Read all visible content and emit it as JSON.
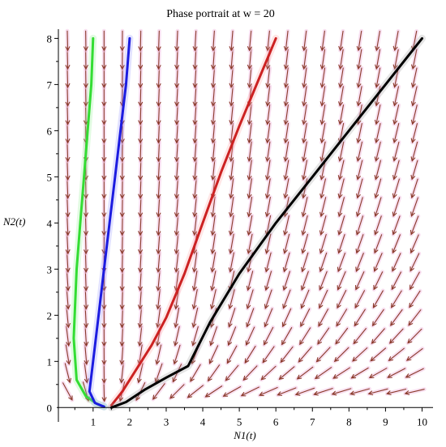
{
  "chart_data": {
    "type": "line",
    "title": "Phase portrait at w = 20",
    "xlabel": "N1(t)",
    "ylabel": "N2(t)",
    "xlim": [
      0.05,
      10.3
    ],
    "ylim": [
      -0.1,
      8.2
    ],
    "xticks": [
      1,
      2,
      3,
      4,
      5,
      6,
      7,
      8,
      9,
      10
    ],
    "yticks": [
      0,
      1,
      2,
      3,
      4,
      5,
      6,
      7,
      8
    ],
    "equilibrium": [
      1.35,
      0
    ],
    "vector_field": {
      "x": [
        0.3,
        0.8,
        1.3,
        1.8,
        2.3,
        2.8,
        3.3,
        3.8,
        4.3,
        4.8,
        5.3,
        5.8,
        6.3,
        6.8,
        7.3,
        7.8,
        8.3,
        8.8,
        9.3,
        9.8
      ],
      "y": [
        0.35,
        0.75,
        1.15,
        1.55,
        1.95,
        2.35,
        2.75,
        3.15,
        3.55,
        3.95,
        4.35,
        4.75,
        5.15,
        5.55,
        5.95,
        6.35,
        6.75,
        7.15,
        7.55,
        7.95
      ],
      "color": "#8a3a2a"
    },
    "series": [
      {
        "color": "#33dd33",
        "glow": "#88ee88",
        "x": [
          1.0,
          0.95,
          0.85,
          0.75,
          0.65,
          0.55,
          0.47,
          0.55,
          0.8,
          1.1,
          1.3
        ],
        "y": [
          8.0,
          7.0,
          6.0,
          5.0,
          4.0,
          3.0,
          1.5,
          0.6,
          0.25,
          0.08,
          0.02
        ]
      },
      {
        "color": "#1c1ce0",
        "glow": "#8a8aff",
        "x": [
          2.0,
          1.9,
          1.75,
          1.6,
          1.45,
          1.3,
          1.15,
          1.0,
          0.9,
          1.05,
          1.3
        ],
        "y": [
          8.0,
          7.0,
          6.0,
          5.0,
          4.0,
          3.0,
          2.0,
          1.0,
          0.35,
          0.1,
          0.02
        ]
      },
      {
        "color": "#cc2222",
        "glow": "#ff9a9a",
        "x": [
          6.0,
          5.5,
          5.0,
          4.5,
          4.0,
          3.5,
          3.0,
          2.6,
          2.2,
          1.8,
          1.5
        ],
        "y": [
          8.0,
          7.05,
          6.1,
          5.1,
          4.0,
          2.9,
          1.95,
          1.35,
          0.85,
          0.35,
          0.05
        ]
      },
      {
        "color": "#000000",
        "glow": "#999999",
        "x": [
          10.0,
          9.0,
          8.0,
          7.0,
          6.0,
          5.0,
          4.2,
          3.6,
          3.0,
          2.4,
          1.9,
          1.5
        ],
        "y": [
          8.0,
          7.0,
          6.0,
          5.0,
          4.0,
          2.9,
          1.85,
          0.9,
          0.65,
          0.38,
          0.12,
          0.0
        ]
      }
    ]
  }
}
